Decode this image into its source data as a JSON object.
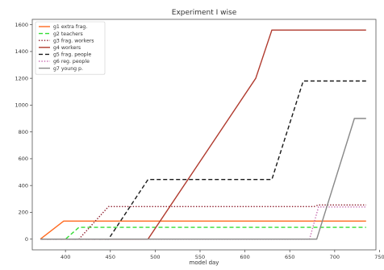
{
  "chart_data": {
    "type": "line",
    "title": "Experiment I wise",
    "xlabel": "model day",
    "ylabel": "",
    "xlim": [
      363,
      746
    ],
    "ylim": [
      -80,
      1640
    ],
    "xticks": [
      400,
      450,
      500,
      550,
      600,
      650,
      700,
      750
    ],
    "yticks": [
      0,
      200,
      400,
      600,
      800,
      1000,
      1200,
      1400,
      1600
    ],
    "grid": false,
    "legend_position": "top-left",
    "series": [
      {
        "name": "g1 extra frag.",
        "color": "#ff6a1f",
        "dash": "solid",
        "x": [
          372,
          398,
          735
        ],
        "y": [
          0,
          135,
          135
        ]
      },
      {
        "name": "g2 teachers",
        "color": "#33dd33",
        "dash": "dashed",
        "x": [
          372,
          400,
          415,
          735
        ],
        "y": [
          0,
          0,
          88,
          88
        ]
      },
      {
        "name": "g3 frag. workers",
        "color": "#8b1a2a",
        "dash": "dotted",
        "x": [
          372,
          415,
          448,
          677,
          682,
          735
        ],
        "y": [
          0,
          0,
          243,
          243,
          255,
          255
        ]
      },
      {
        "name": "g4 workers",
        "color": "#b03a2e",
        "dash": "solid",
        "x": [
          372,
          492,
          612,
          630,
          735
        ],
        "y": [
          0,
          0,
          1200,
          1560,
          1560
        ]
      },
      {
        "name": "g5 frag. people",
        "color": "#1a1a1a",
        "dash": "dashed",
        "x": [
          372,
          448,
          492,
          630,
          665,
          735
        ],
        "y": [
          0,
          0,
          445,
          445,
          1180,
          1180
        ]
      },
      {
        "name": "g6 reg. people",
        "color": "#c76bb0",
        "dash": "dotted",
        "x": [
          372,
          672,
          682,
          735
        ],
        "y": [
          0,
          0,
          240,
          240
        ]
      },
      {
        "name": "g7 young p.",
        "color": "#888888",
        "dash": "solid",
        "x": [
          372,
          680,
          722,
          735
        ],
        "y": [
          0,
          0,
          900,
          900
        ]
      }
    ]
  }
}
